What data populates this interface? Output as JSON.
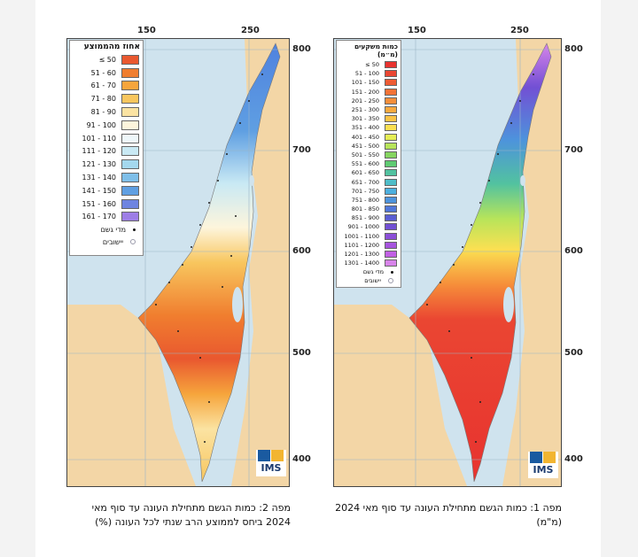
{
  "maps": [
    {
      "id": "left",
      "axis_top": [
        "150",
        "250"
      ],
      "axis_right": [
        "800",
        "700",
        "600",
        "500",
        "400"
      ],
      "legend_title": "אחוז מהממוצע",
      "legend": [
        {
          "label": "≤ 50",
          "color": "#e9582f"
        },
        {
          "label": "51 - 60",
          "color": "#f07e2f"
        },
        {
          "label": "61 - 70",
          "color": "#f6a53c"
        },
        {
          "label": "71 - 80",
          "color": "#f8c65e"
        },
        {
          "label": "81 - 90",
          "color": "#fbe3a2"
        },
        {
          "label": "91 - 100",
          "color": "#fdf5dc"
        },
        {
          "label": "101 - 110",
          "color": "#eef7fa"
        },
        {
          "label": "111 - 120",
          "color": "#c9e9f4"
        },
        {
          "label": "121 - 130",
          "color": "#a4d8ee"
        },
        {
          "label": "131 - 140",
          "color": "#7fbfe9"
        },
        {
          "label": "141 - 150",
          "color": "#5f9fe2"
        },
        {
          "label": "151 - 160",
          "color": "#6e84e0"
        },
        {
          "label": "161 - 170",
          "color": "#9d7ee6"
        }
      ],
      "symbols": [
        "מדי גשם",
        "יישובים"
      ]
    },
    {
      "id": "right",
      "axis_top": [
        "150",
        "250"
      ],
      "axis_right": [
        "800",
        "700",
        "600",
        "500",
        "400"
      ],
      "legend_title": "כמות משקעים (מ״מ)",
      "legend": [
        {
          "label": "≤ 50",
          "color": "#e8332f"
        },
        {
          "label": "51 - 100",
          "color": "#ea4632"
        },
        {
          "label": "101 - 150",
          "color": "#ee5b34"
        },
        {
          "label": "151 - 200",
          "color": "#f27236"
        },
        {
          "label": "201 - 250",
          "color": "#f68e3a"
        },
        {
          "label": "251 - 300",
          "color": "#f9a93f"
        },
        {
          "label": "301 - 350",
          "color": "#fbc446"
        },
        {
          "label": "351 - 400",
          "color": "#fbe052"
        },
        {
          "label": "401 - 450",
          "color": "#e6ee55"
        },
        {
          "label": "451 - 500",
          "color": "#b7e45a"
        },
        {
          "label": "501 - 550",
          "color": "#86d560"
        },
        {
          "label": "551 - 600",
          "color": "#5fcb72"
        },
        {
          "label": "601 - 650",
          "color": "#52c2a0"
        },
        {
          "label": "651 - 700",
          "color": "#4fbdc8"
        },
        {
          "label": "701 - 750",
          "color": "#4cb0df"
        },
        {
          "label": "751 - 800",
          "color": "#4d93dc"
        },
        {
          "label": "801 - 850",
          "color": "#5076d9"
        },
        {
          "label": "851 - 900",
          "color": "#5b5ed3"
        },
        {
          "label": "901 - 1000",
          "color": "#7250d4"
        },
        {
          "label": "1001 - 1100",
          "color": "#8b4fd8"
        },
        {
          "label": "1101 - 1200",
          "color": "#a654de"
        },
        {
          "label": "1201 - 1300",
          "color": "#c160e4"
        },
        {
          "label": "1301 - 1400",
          "color": "#d884ea"
        }
      ],
      "symbols": [
        "מדי גשם",
        "יישובים"
      ]
    }
  ],
  "logo_text": "IMS",
  "captions": {
    "left": "מפה 2: כמות הגשם מתחילת העונה עד סוף מאי 2024 ביחס לממוצע הרב שנתי לכל העונה (%)",
    "right": "מפה 1: כמות הגשם מתחילת העונה עד סוף מאי 2024 (מ\"מ)"
  }
}
